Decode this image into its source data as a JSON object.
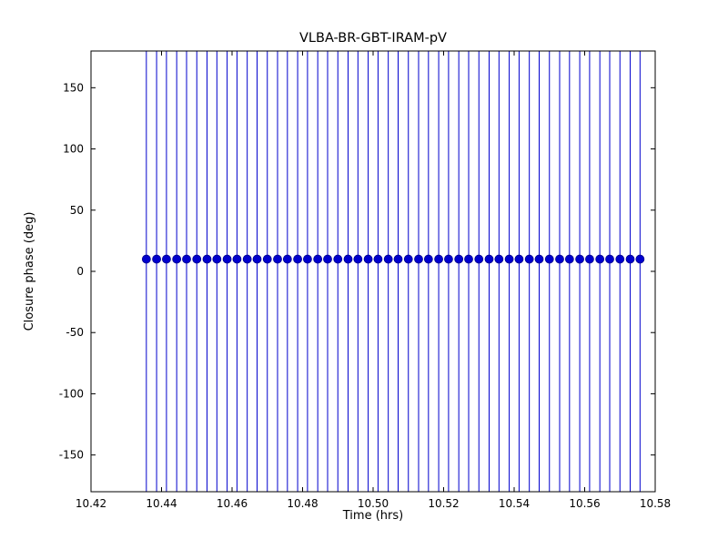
{
  "figure": {
    "background": "#ffffff",
    "frame_color": "#000000"
  },
  "chart_data": {
    "type": "scatter",
    "title": "VLBA-BR-GBT-IRAM-pV",
    "xlabel": "Time (hrs)",
    "ylabel": "Closure phase (deg)",
    "xlim": [
      10.42,
      10.58
    ],
    "ylim": [
      -180,
      180
    ],
    "grid": false,
    "legend": "none",
    "xticks": {
      "values": [
        10.42,
        10.44,
        10.46,
        10.48,
        10.5,
        10.52,
        10.54,
        10.56,
        10.58
      ],
      "labels": [
        "10.42",
        "10.44",
        "10.46",
        "10.48",
        "10.50",
        "10.52",
        "10.54",
        "10.56",
        "10.58"
      ]
    },
    "yticks": {
      "values": [
        -150,
        -100,
        -50,
        0,
        50,
        100,
        150
      ],
      "labels": [
        "-150",
        "-100",
        "-50",
        "0",
        "50",
        "100",
        "150"
      ]
    },
    "series": [
      {
        "name": "closure-phase-errorbar",
        "marker": "circle",
        "color": "#0000cd",
        "marker_edge_color": "#00008b",
        "yerr": 200,
        "x": [
          10.4357,
          10.4386,
          10.4414,
          10.4443,
          10.4471,
          10.45,
          10.4529,
          10.4557,
          10.4586,
          10.4614,
          10.4643,
          10.4671,
          10.47,
          10.4729,
          10.4757,
          10.4786,
          10.4814,
          10.4843,
          10.4871,
          10.49,
          10.4929,
          10.4957,
          10.4986,
          10.5014,
          10.5043,
          10.5071,
          10.51,
          10.5129,
          10.5157,
          10.5186,
          10.5214,
          10.5243,
          10.5271,
          10.53,
          10.5329,
          10.5357,
          10.5386,
          10.5414,
          10.5443,
          10.5471,
          10.55,
          10.5529,
          10.5557,
          10.5586,
          10.5614,
          10.5643,
          10.5671,
          10.57,
          10.5729,
          10.5757
        ],
        "y": [
          10,
          10,
          10,
          10,
          10,
          10,
          10,
          10,
          10,
          10,
          10,
          10,
          10,
          10,
          10,
          10,
          10,
          10,
          10,
          10,
          10,
          10,
          10,
          10,
          10,
          10,
          10,
          10,
          10,
          10,
          10,
          10,
          10,
          10,
          10,
          10,
          10,
          10,
          10,
          10,
          10,
          10,
          10,
          10,
          10,
          10,
          10,
          10,
          10,
          10
        ]
      }
    ]
  }
}
